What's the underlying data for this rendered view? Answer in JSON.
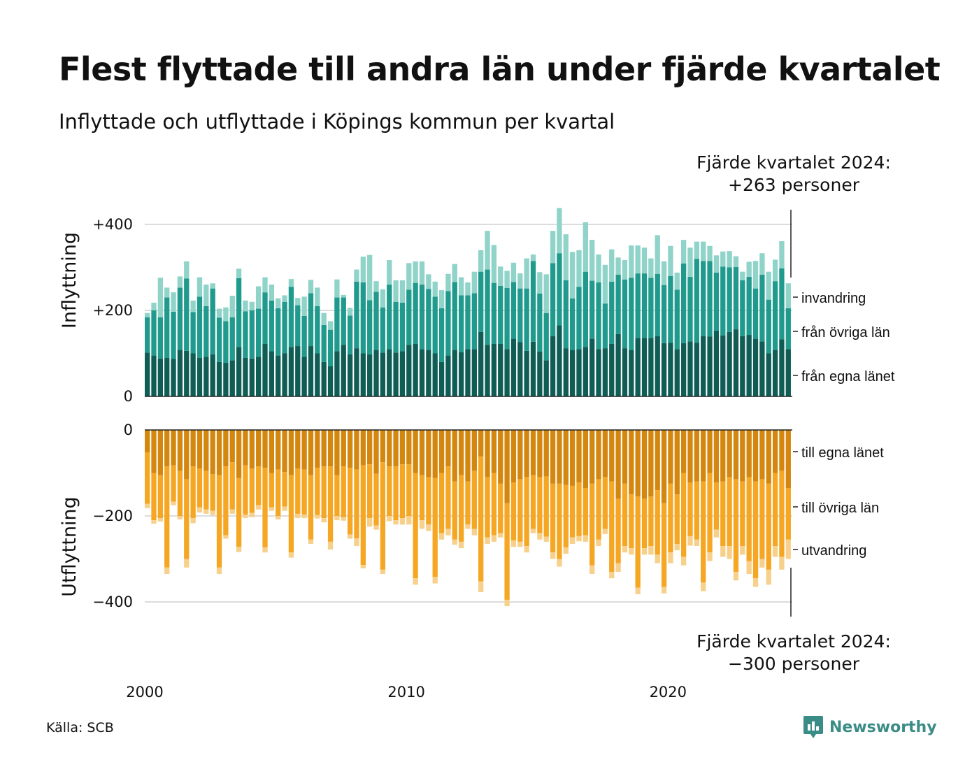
{
  "title": "Flest flyttade till andra län under fjärde kvartalet",
  "subtitle": "Inflyttade och utflyttade i Köpings kommun per kvartal",
  "callout_top": {
    "line1": "Fjärde kvartalet 2024:",
    "line2": "+263 personer"
  },
  "callout_bottom": {
    "line1": "Fjärde kvartalet 2024:",
    "line2": "−300 personer"
  },
  "source": "Källa: SCB",
  "logo": {
    "text": "Newsworthy",
    "icon": "newsworthy-chart-bubble-icon",
    "color": "#3a8c86"
  },
  "colors": {
    "in_own": "#0f5d55",
    "in_other": "#1f9a8c",
    "in_abroad": "#8fd3c9",
    "out_own": "#d4870f",
    "out_other": "#f5a623",
    "out_abroad": "#f7d08c",
    "grid": "#dcdcdc"
  },
  "chart_data": {
    "type": "bar",
    "x_start": "2000 Q1",
    "x_ticks": [
      "2000",
      "2010",
      "2020"
    ],
    "panels": [
      {
        "name": "inflyttning",
        "ylabel": "Inflyttning",
        "y_ticks": [
          "0",
          "+200",
          "+400"
        ],
        "ylim": [
          0,
          430
        ],
        "series": [
          {
            "name": "från egna länet",
            "values": [
              102,
              95,
              88,
              90,
              87,
              108,
              106,
              100,
              90,
              92,
              98,
              80,
              78,
              84,
              115,
              90,
              88,
              92,
              122,
              105,
              95,
              100,
              115,
              117,
              92,
              117,
              100,
              80,
              70,
              105,
              120,
              98,
              112,
              100,
              98,
              108,
              102,
              110,
              102,
              105,
              120,
              122,
              110,
              108,
              100,
              80,
              95,
              108,
              103,
              110,
              110,
              150,
              120,
              122,
              122,
              110,
              134,
              126,
              106,
              127,
              104,
              84,
              140,
              165,
              112,
              108,
              110,
              115,
              134,
              110,
              112,
              122,
              145,
              112,
              108,
              136,
              136,
              136,
              140,
              124,
              125,
              110,
              124,
              128,
              125,
              140,
              139,
              153,
              142,
              150,
              156,
              140,
              143,
              134,
              128,
              100,
              108,
              133,
              110
            ]
          },
          {
            "name": "från övriga län",
            "values": [
              82,
              105,
              96,
              140,
              110,
              145,
              168,
              96,
              142,
              118,
              153,
              103,
              97,
              100,
              160,
              108,
              112,
              112,
              120,
              118,
              110,
              120,
              140,
              95,
              95,
              123,
              110,
              86,
              85,
              125,
              110,
              90,
              155,
              165,
              126,
              135,
              105,
              150,
              118,
              113,
              128,
              142,
              150,
              142,
              132,
              125,
              150,
              158,
              132,
              125,
              130,
              140,
              175,
              142,
              135,
              142,
              132,
              125,
              145,
              188,
              135,
              110,
              170,
              168,
              158,
              120,
              145,
              175,
              135,
              155,
              104,
              145,
              138,
              160,
              168,
              150,
              150,
              140,
              145,
              135,
              155,
              138,
              185,
              150,
              195,
              175,
              176,
              135,
              160,
              150,
              145,
              130,
              135,
              117,
              155,
              125,
              160,
              165,
              95
            ]
          },
          {
            "name": "invandring",
            "values": [
              10,
              18,
              92,
              23,
              45,
              26,
              40,
              27,
              45,
              50,
              12,
              21,
              32,
              50,
              22,
              25,
              20,
              52,
              35,
              37,
              23,
              15,
              18,
              17,
              45,
              31,
              43,
              28,
              20,
              42,
              6,
              18,
              28,
              60,
              105,
              25,
              42,
              57,
              50,
              52,
              62,
              50,
              54,
              34,
              35,
              42,
              40,
              42,
              42,
              30,
              50,
              50,
              90,
              88,
              45,
              40,
              45,
              35,
              70,
              15,
              50,
              90,
              75,
              105,
              107,
              108,
              85,
              115,
              95,
              65,
              90,
              75,
              40,
              45,
              75,
              65,
              60,
              45,
              90,
              55,
              70,
              40,
              55,
              68,
              40,
              45,
              35,
              40,
              35,
              38,
              25,
              20,
              35,
              64,
              50,
              65,
              50,
              63,
              58
            ]
          }
        ]
      },
      {
        "name": "utflyttning",
        "ylabel": "Utflyttning",
        "y_ticks": [
          "0",
          "−200",
          "−400"
        ],
        "ylim": [
          -450,
          0
        ],
        "series": [
          {
            "name": "till egna länet",
            "values": [
              -52,
              -100,
              -105,
              -85,
              -82,
              -95,
              -115,
              -85,
              -90,
              -95,
              -103,
              -105,
              -85,
              -75,
              -112,
              -82,
              -90,
              -85,
              -88,
              -100,
              -92,
              -98,
              -105,
              -90,
              -92,
              -105,
              -88,
              -85,
              -85,
              -105,
              -85,
              -88,
              -92,
              -82,
              -80,
              -102,
              -75,
              -85,
              -85,
              -80,
              -80,
              -100,
              -105,
              -110,
              -112,
              -100,
              -85,
              -120,
              -105,
              -120,
              -95,
              -62,
              -110,
              -100,
              -125,
              -170,
              -122,
              -115,
              -110,
              -105,
              -110,
              -108,
              -125,
              -125,
              -128,
              -130,
              -122,
              -135,
              -125,
              -115,
              -110,
              -120,
              -160,
              -125,
              -150,
              -155,
              -160,
              -155,
              -140,
              -170,
              -125,
              -150,
              -100,
              -122,
              -120,
              -120,
              -100,
              -122,
              -120,
              -110,
              -115,
              -120,
              -110,
              -120,
              -115,
              -125,
              -100,
              -95,
              -135
            ]
          },
          {
            "name": "till övriga län",
            "values": [
              -120,
              -110,
              -100,
              -235,
              -85,
              -105,
              -185,
              -120,
              -90,
              -90,
              -85,
              -215,
              -160,
              -110,
              -160,
              -115,
              -103,
              -90,
              -185,
              -80,
              -108,
              -80,
              -180,
              -105,
              -105,
              -150,
              -110,
              -120,
              -175,
              -95,
              -118,
              -155,
              -160,
              -232,
              -125,
              -120,
              -250,
              -115,
              -125,
              -125,
              -120,
              -245,
              -105,
              -110,
              -230,
              -140,
              -145,
              -135,
              -155,
              -100,
              -135,
              -290,
              -140,
              -145,
              -115,
              -225,
              -135,
              -145,
              -160,
              -125,
              -130,
              -140,
              -160,
              -175,
              -145,
              -120,
              -125,
              -110,
              -190,
              -140,
              -120,
              -210,
              -150,
              -145,
              -125,
              -212,
              -115,
              -115,
              -150,
              -195,
              -160,
              -115,
              -195,
              -125,
              -135,
              -235,
              -185,
              -110,
              -150,
              -160,
              -215,
              -150,
              -195,
              -225,
              -185,
              -200,
              -170,
              -200,
              -120
            ]
          },
          {
            "name": "utvandring",
            "values": [
              -10,
              -8,
              -8,
              -15,
              -8,
              -8,
              -20,
              -12,
              -12,
              -10,
              -10,
              -15,
              -8,
              -10,
              -12,
              -8,
              -10,
              -10,
              -12,
              -8,
              -8,
              -10,
              -12,
              -10,
              -8,
              -10,
              -8,
              -10,
              -18,
              -10,
              -8,
              -10,
              -18,
              -8,
              -20,
              -10,
              -10,
              -12,
              -10,
              -15,
              -20,
              -15,
              -20,
              -15,
              -15,
              -15,
              -15,
              -12,
              -15,
              -10,
              -15,
              -25,
              -15,
              -15,
              -10,
              -15,
              -15,
              -12,
              -15,
              -10,
              -15,
              -12,
              -15,
              -18,
              -15,
              -15,
              -12,
              -15,
              -20,
              -15,
              -12,
              -15,
              -20,
              -15,
              -15,
              -15,
              -15,
              -20,
              -20,
              -15,
              -25,
              -15,
              -20,
              -22,
              -15,
              -20,
              -20,
              -18,
              -25,
              -30,
              -20,
              -20,
              -30,
              -20,
              -20,
              -35,
              -25,
              -30,
              -45
            ]
          }
        ]
      }
    ]
  }
}
